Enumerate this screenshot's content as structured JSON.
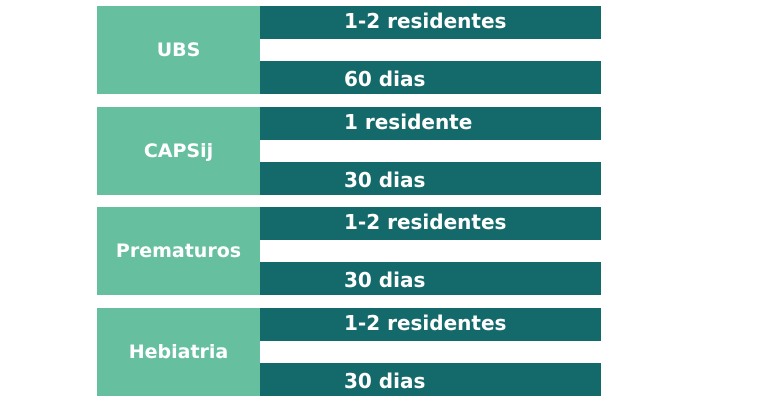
{
  "colors": {
    "label_box": "#66bf9f",
    "bar": "#14696a",
    "text": "#ffffff",
    "background": "#ffffff"
  },
  "groups": [
    {
      "name": "UBS",
      "residents": "1-2 residentes",
      "duration": "60 dias"
    },
    {
      "name": "CAPSij",
      "residents": "1 residente",
      "duration": "30 dias"
    },
    {
      "name": "Prematuros",
      "residents": "1-2 residentes",
      "duration": "30 dias"
    },
    {
      "name": "Hebiatria",
      "residents": "1-2 residentes",
      "duration": "30 dias"
    }
  ]
}
